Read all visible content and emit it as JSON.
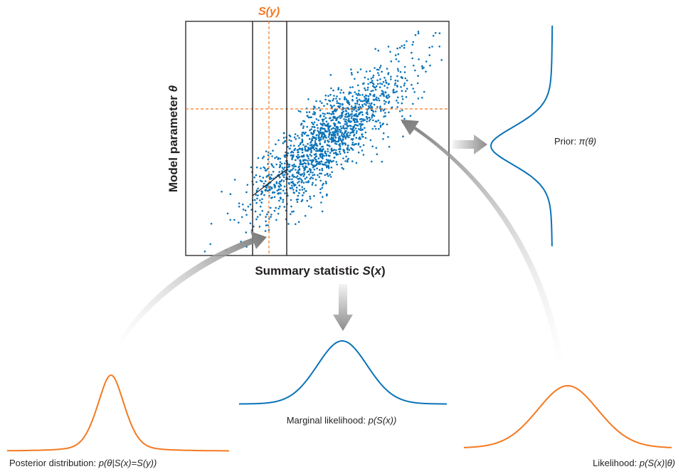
{
  "colors": {
    "blue": "#0b73b8",
    "orange": "#f47920",
    "dash": "#f47920",
    "frame": "#231f20",
    "arrow_light": "#f2f2f2",
    "arrow_dark": "#8a8a8a"
  },
  "labels": {
    "sy_name": "S(",
    "sy_var": "y",
    "sy_close": ")",
    "y_axis_name": "Model parameter ",
    "y_axis_var": "θ",
    "x_axis_name": "Summary statistic ",
    "x_axis_s": "S",
    "x_axis_open": "(",
    "x_axis_var": "x",
    "x_axis_close": ")",
    "prior_name": "Prior:  ",
    "prior_formula": "π(θ)",
    "marginal_name": "Marginal likelihood:  ",
    "marginal_formula": "p(S(x))",
    "posterior_name": "Posterior distribution:  ",
    "posterior_formula": "p(θ|S(x)=S(y))",
    "likelihood_name": "Likelihood: ",
    "likelihood_formula": "p(S(x)|θ)"
  },
  "scatter": {
    "point_count": 1500,
    "correlation": 0.85,
    "seed": 7
  }
}
